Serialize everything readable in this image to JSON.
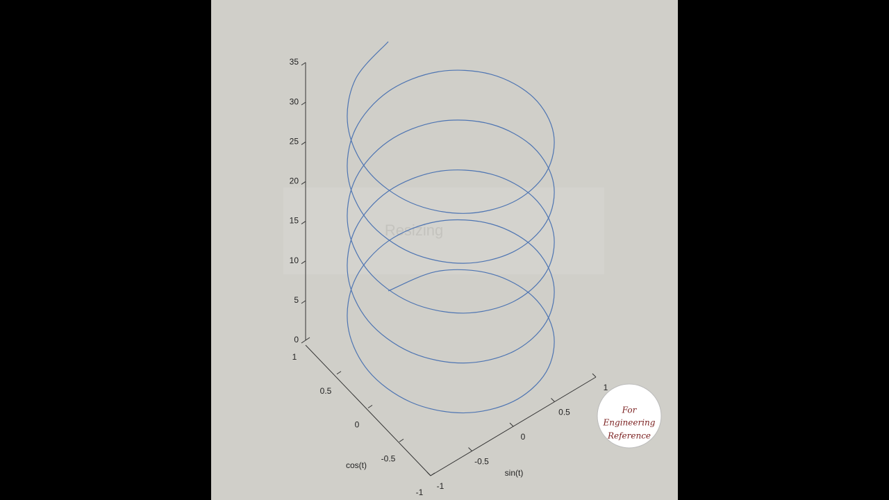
{
  "chart_data": {
    "type": "line3d",
    "xlabel": "sin(t)",
    "ylabel": "cos(t)",
    "color": "#4d74b2",
    "xlim": [
      -1,
      1
    ],
    "ylim": [
      -1,
      1
    ],
    "zlim": [
      0,
      35
    ],
    "xticks": [
      -1,
      -0.5,
      0,
      0.5,
      1
    ],
    "yticks": [
      -1,
      -0.5,
      0,
      0.5,
      1
    ],
    "zticks": [
      0,
      5,
      10,
      15,
      20,
      25,
      30,
      35
    ],
    "x": [
      0,
      0.5,
      0.866,
      1,
      0.866,
      0.5,
      0,
      -0.5,
      -0.866,
      -1,
      -0.866,
      -0.5,
      0,
      0.5,
      0.866,
      1,
      0.866,
      0.5,
      0,
      -0.5,
      -0.866,
      -1,
      -0.866,
      -0.5,
      0,
      0.5,
      0.866,
      1,
      0.866,
      0.5,
      0,
      -0.5,
      -0.866,
      -1,
      -0.866,
      -0.5,
      0,
      0.5,
      0.866,
      1,
      0.866,
      0.5,
      0,
      -0.5,
      -0.866,
      -1,
      -0.866,
      -0.5,
      0,
      0.5,
      0.866,
      1,
      0.866,
      0.5,
      0,
      -0.5,
      -0.866,
      -1,
      -0.866,
      -0.5,
      0
    ],
    "y": [
      1,
      0.866,
      0.5,
      0,
      -0.5,
      -0.866,
      -1,
      -0.866,
      -0.5,
      0,
      0.5,
      0.866,
      1,
      0.866,
      0.5,
      0,
      -0.5,
      -0.866,
      -1,
      -0.866,
      -0.5,
      0,
      0.5,
      0.866,
      1,
      0.866,
      0.5,
      0,
      -0.5,
      -0.866,
      -1,
      -0.866,
      -0.5,
      0,
      0.5,
      0.866,
      1,
      0.866,
      0.5,
      0,
      -0.5,
      -0.866,
      -1,
      -0.866,
      -0.5,
      0,
      0.5,
      0.866,
      1,
      0.866,
      0.5,
      0,
      -0.5,
      -0.866,
      -1,
      -0.866,
      -0.5,
      0,
      0.5,
      0.866,
      1
    ],
    "z": [
      0,
      0.524,
      1.047,
      1.571,
      2.094,
      2.618,
      3.142,
      3.665,
      4.189,
      4.712,
      5.236,
      5.76,
      6.283,
      6.807,
      7.33,
      7.854,
      8.378,
      8.901,
      9.425,
      9.948,
      10.472,
      10.996,
      11.519,
      12.043,
      12.566,
      13.09,
      13.614,
      14.137,
      14.661,
      15.184,
      15.708,
      16.232,
      16.755,
      17.279,
      17.802,
      18.326,
      18.85,
      19.373,
      19.897,
      20.42,
      20.944,
      21.468,
      21.991,
      22.515,
      23.038,
      23.562,
      24.086,
      24.609,
      25.133,
      25.656,
      26.18,
      26.704,
      27.227,
      27.751,
      28.274,
      28.798,
      29.322,
      29.845,
      30.369,
      30.892,
      31.416
    ]
  },
  "overlay": "Resizing",
  "logo": {
    "lines": [
      "For",
      "Engineering",
      "Reference"
    ]
  }
}
